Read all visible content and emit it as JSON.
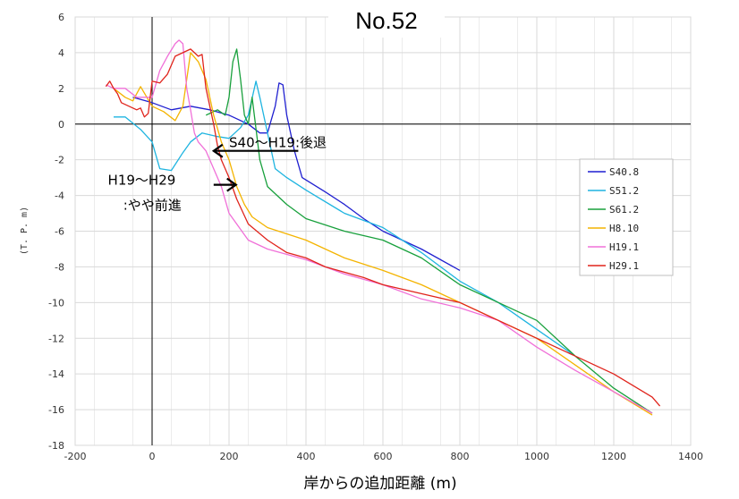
{
  "chart_data": {
    "type": "line",
    "title": "No.52",
    "xlabel": "岸からの追加距離 (m)",
    "ylabel": "(T. P. m)",
    "xlim": [
      -200,
      1400
    ],
    "ylim": [
      -18,
      6
    ],
    "x_ticks": [
      "-200",
      "0",
      "200",
      "400",
      "600",
      "800",
      "1000",
      "1200",
      "1400"
    ],
    "y_ticks": [
      "6",
      "4",
      "2",
      "0",
      "-2",
      "-4",
      "-6",
      "-8",
      "-10",
      "-12",
      "-14",
      "-16",
      "-18"
    ],
    "grid": true,
    "legend_position": "right",
    "series": [
      {
        "name": "S40.8",
        "color": "#1f1fd0",
        "x": [
          -50,
          0,
          50,
          100,
          150,
          200,
          250,
          280,
          300,
          320,
          330,
          340,
          350,
          370,
          390,
          450,
          500,
          550,
          600,
          700,
          800
        ],
        "y": [
          1.5,
          1.2,
          0.8,
          1.0,
          0.8,
          0.5,
          0.0,
          -0.5,
          -0.5,
          1.0,
          2.3,
          2.2,
          0.5,
          -1.5,
          -3.0,
          -3.8,
          -4.5,
          -5.3,
          -6.0,
          -7.0,
          -8.2
        ]
      },
      {
        "name": "S51.2",
        "color": "#1eb4e0",
        "x": [
          -100,
          -70,
          -30,
          0,
          20,
          50,
          80,
          100,
          130,
          170,
          200,
          230,
          250,
          270,
          280,
          300,
          320,
          350,
          400,
          500,
          600,
          700,
          800,
          900,
          1000,
          1100
        ],
        "y": [
          0.4,
          0.4,
          -0.3,
          -1.0,
          -2.5,
          -2.6,
          -1.6,
          -1.0,
          -0.5,
          -0.7,
          -0.8,
          -0.2,
          0.5,
          2.4,
          1.5,
          -0.5,
          -2.5,
          -3.0,
          -3.7,
          -5.0,
          -5.8,
          -7.2,
          -8.8,
          -10.0,
          -11.5,
          -13.0
        ]
      },
      {
        "name": "S61.2",
        "color": "#18a03c",
        "x": [
          140,
          170,
          190,
          200,
          210,
          220,
          230,
          240,
          250,
          260,
          280,
          300,
          350,
          400,
          500,
          600,
          700,
          800,
          900,
          1000,
          1100,
          1200,
          1300
        ],
        "y": [
          0.5,
          0.8,
          0.5,
          1.5,
          3.5,
          4.2,
          2.5,
          0.5,
          0.0,
          1.5,
          -2.0,
          -3.5,
          -4.5,
          -5.3,
          -6.0,
          -6.5,
          -7.5,
          -9.0,
          -10.0,
          -11.0,
          -13.0,
          -14.8,
          -16.2
        ]
      },
      {
        "name": "H8.10",
        "color": "#f4b400",
        "x": [
          -100,
          -70,
          -50,
          -30,
          0,
          30,
          60,
          80,
          100,
          120,
          140,
          160,
          180,
          200,
          220,
          240,
          260,
          300,
          400,
          500,
          600,
          700,
          800,
          900,
          1000,
          1100,
          1200,
          1300
        ],
        "y": [
          2.0,
          1.5,
          1.3,
          2.1,
          1.0,
          0.7,
          0.2,
          1.0,
          4.0,
          3.5,
          2.5,
          0.5,
          -1.0,
          -2.0,
          -3.5,
          -4.5,
          -5.2,
          -5.8,
          -6.5,
          -7.5,
          -8.2,
          -9.0,
          -10.0,
          -11.0,
          -12.0,
          -13.5,
          -15.0,
          -16.3
        ]
      },
      {
        "name": "H19.1",
        "color": "#f070d8",
        "x": [
          -120,
          -100,
          -70,
          -40,
          0,
          20,
          40,
          60,
          70,
          80,
          90,
          100,
          110,
          120,
          140,
          160,
          180,
          200,
          250,
          300,
          400,
          500,
          600,
          700,
          800,
          900,
          1000,
          1100,
          1200,
          1300
        ],
        "y": [
          2.2,
          2.0,
          2.0,
          1.5,
          1.5,
          3.0,
          3.8,
          4.5,
          4.7,
          4.5,
          2.0,
          0.8,
          -0.5,
          -1.0,
          -1.5,
          -2.5,
          -3.5,
          -5.0,
          -6.5,
          -7.0,
          -7.6,
          -8.4,
          -9.0,
          -9.8,
          -10.3,
          -11.0,
          -12.5,
          -13.8,
          -15.0,
          -16.2
        ]
      },
      {
        "name": "H29.1",
        "color": "#e0241c",
        "x": [
          -120,
          -110,
          -100,
          -90,
          -80,
          -60,
          -40,
          -30,
          -20,
          -10,
          0,
          20,
          40,
          60,
          80,
          100,
          120,
          130,
          140,
          150,
          160,
          170,
          180,
          190,
          200,
          220,
          250,
          300,
          350,
          400,
          450,
          500,
          550,
          600,
          700,
          800,
          900,
          1000,
          1100,
          1200,
          1300,
          1320
        ],
        "y": [
          2.1,
          2.4,
          2.0,
          1.7,
          1.2,
          1.0,
          0.8,
          0.9,
          0.4,
          0.6,
          2.4,
          2.3,
          2.8,
          3.8,
          4.0,
          4.2,
          3.8,
          3.9,
          2.0,
          1.0,
          0.0,
          -1.2,
          -2.0,
          -2.5,
          -3.0,
          -4.2,
          -5.6,
          -6.5,
          -7.2,
          -7.5,
          -8.0,
          -8.3,
          -8.6,
          -9.0,
          -9.5,
          -10.0,
          -11.0,
          -12.0,
          -13.0,
          -14.0,
          -15.3,
          -15.8
        ]
      }
    ],
    "annotations": [
      {
        "text": "S40～H19:後退",
        "x": 200,
        "y": -1.3
      },
      {
        "text": "H19～H29",
        "x": -115,
        "y": -3.4
      },
      {
        "text": ":やや前進",
        "x": -75,
        "y": -4.8
      }
    ],
    "arrows": [
      {
        "from": [
          380,
          -1.5
        ],
        "to": [
          160,
          -1.5
        ]
      },
      {
        "from": [
          160,
          -3.4
        ],
        "to": [
          218,
          -3.4
        ]
      }
    ]
  }
}
